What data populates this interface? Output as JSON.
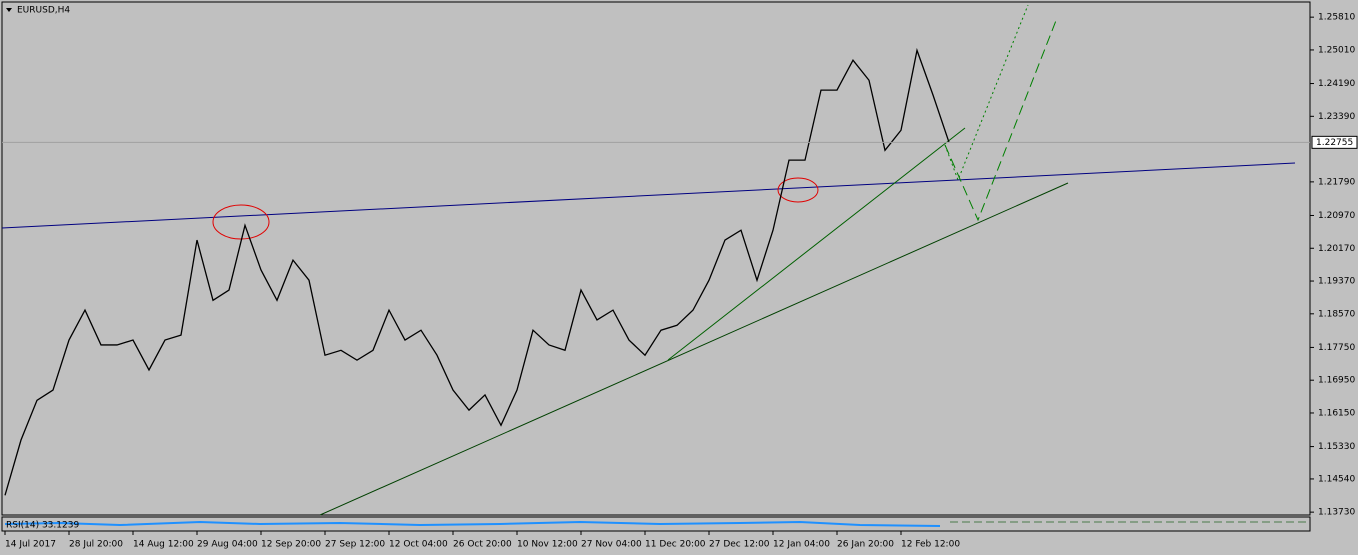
{
  "chart_data": {
    "type": "line",
    "title": "EURUSD,H4",
    "categories": [
      "14 Jul 2017",
      null,
      null,
      null,
      "28 Jul 20:00",
      null,
      null,
      null,
      "14 Aug 12:00",
      null,
      null,
      null,
      "29 Aug 04:00",
      null,
      null,
      null,
      "12 Sep 20:00",
      null,
      null,
      null,
      "27 Sep 12:00",
      null,
      null,
      null,
      "12 Oct 04:00",
      null,
      null,
      null,
      "26 Oct 20:00",
      null,
      null,
      null,
      "10 Nov 12:00",
      null,
      null,
      null,
      "27 Nov 04:00",
      null,
      null,
      null,
      "11 Dec 20:00",
      null,
      null,
      null,
      "27 Dec 12:00",
      null,
      null,
      null,
      "12 Jan 04:00",
      null,
      null,
      null,
      "26 Jan 20:00",
      null,
      null,
      null,
      "12 Feb 12:00",
      null,
      null,
      null
    ],
    "values": [
      1.1414,
      1.1549,
      1.1646,
      1.1671,
      1.1793,
      1.1866,
      1.1781,
      1.1781,
      1.1793,
      1.172,
      1.1793,
      1.1805,
      1.2037,
      1.189,
      1.1915,
      1.2073,
      1.1964,
      1.189,
      1.1988,
      1.1939,
      1.1756,
      1.1768,
      1.1744,
      1.1768,
      1.1866,
      1.1793,
      1.1817,
      1.1756,
      1.1671,
      1.1622,
      1.1659,
      1.1585,
      1.1671,
      1.1817,
      1.1781,
      1.1768,
      1.1915,
      1.1842,
      1.1866,
      1.1793,
      1.1756,
      1.1817,
      1.1829,
      1.1866,
      1.1939,
      1.2037,
      1.2061,
      1.1939,
      1.2061,
      1.2232,
      1.2232,
      1.2403,
      1.2403,
      1.2476,
      1.2427,
      1.2256,
      1.2305,
      1.25,
      1.2391,
      1.22755
    ],
    "color": "#000000",
    "ylim": [
      1.1366,
      1.2618
    ],
    "yticks": [
      {
        "value": 1.2581,
        "label": "1.25810"
      },
      {
        "value": 1.2501,
        "label": "1.25010"
      },
      {
        "value": 1.2419,
        "label": "1.24190"
      },
      {
        "value": 1.2339,
        "label": "1.23390"
      },
      {
        "value": 1.2179,
        "label": "1.21790"
      },
      {
        "value": 1.2097,
        "label": "1.20970"
      },
      {
        "value": 1.2017,
        "label": "1.20170"
      },
      {
        "value": 1.1937,
        "label": "1.19370"
      },
      {
        "value": 1.1857,
        "label": "1.18570"
      },
      {
        "value": 1.1775,
        "label": "1.17750"
      },
      {
        "value": 1.1695,
        "label": "1.16950"
      },
      {
        "value": 1.1615,
        "label": "1.16150"
      },
      {
        "value": 1.1533,
        "label": "1.15330"
      },
      {
        "value": 1.1454,
        "label": "1.14540"
      },
      {
        "value": 1.1373,
        "label": "1.13730"
      }
    ],
    "price_line": {
      "value": 1.22755,
      "label": "1.22755"
    },
    "indicator_label": "RSI(14) 33.1239"
  }
}
